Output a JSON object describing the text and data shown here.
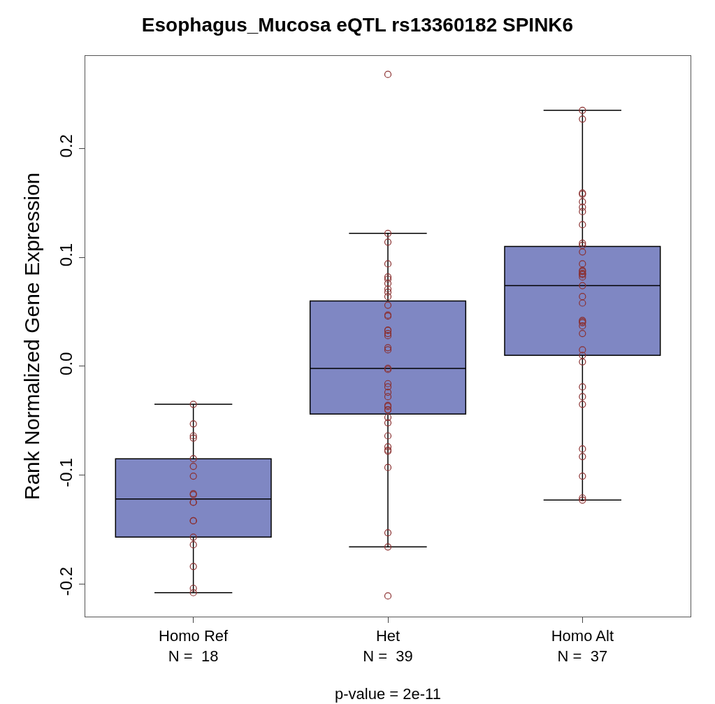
{
  "chart_data": {
    "type": "box",
    "title": "Esophagus_Mucosa eQTL rs13360182 SPINK6",
    "ylabel": "Rank Normalized Gene Expression",
    "categories": [
      "Homo Ref\nN =  18",
      "Het\nN =  39",
      "Homo Alt\nN =  37"
    ],
    "color": "#7f87c3",
    "boxes": [
      {
        "low": -0.208,
        "q1": -0.157,
        "median": -0.122,
        "q3": -0.085,
        "high": -0.035
      },
      {
        "low": -0.166,
        "q1": -0.044,
        "median": -0.002,
        "q3": 0.06,
        "high": 0.122
      },
      {
        "low": -0.123,
        "q1": 0.01,
        "median": 0.074,
        "q3": 0.11,
        "high": 0.235
      }
    ],
    "series": [
      {
        "type": "scatter",
        "color": "#8b2f2f",
        "x": [
          "Homo Ref\nN =  18",
          "Homo Ref\nN =  18",
          "Homo Ref\nN =  18",
          "Homo Ref\nN =  18",
          "Homo Ref\nN =  18",
          "Homo Ref\nN =  18",
          "Homo Ref\nN =  18",
          "Homo Ref\nN =  18",
          "Homo Ref\nN =  18",
          "Homo Ref\nN =  18",
          "Homo Ref\nN =  18",
          "Homo Ref\nN =  18",
          "Homo Ref\nN =  18",
          "Homo Ref\nN =  18",
          "Homo Ref\nN =  18",
          "Homo Ref\nN =  18",
          "Homo Ref\nN =  18",
          "Homo Ref\nN =  18"
        ],
        "values": [
          -0.035,
          -0.053,
          -0.064,
          -0.066,
          -0.085,
          -0.092,
          -0.101,
          -0.117,
          -0.118,
          -0.125,
          -0.125,
          -0.142,
          -0.142,
          -0.157,
          -0.164,
          -0.184,
          -0.204,
          -0.208
        ]
      },
      {
        "type": "scatter",
        "color": "#8b2f2f",
        "x": [
          "Het\nN =  39",
          "Het\nN =  39",
          "Het\nN =  39",
          "Het\nN =  39",
          "Het\nN =  39",
          "Het\nN =  39",
          "Het\nN =  39",
          "Het\nN =  39",
          "Het\nN =  39",
          "Het\nN =  39",
          "Het\nN =  39",
          "Het\nN =  39",
          "Het\nN =  39",
          "Het\nN =  39",
          "Het\nN =  39",
          "Het\nN =  39",
          "Het\nN =  39",
          "Het\nN =  39",
          "Het\nN =  39",
          "Het\nN =  39",
          "Het\nN =  39",
          "Het\nN =  39",
          "Het\nN =  39",
          "Het\nN =  39",
          "Het\nN =  39",
          "Het\nN =  39",
          "Het\nN =  39",
          "Het\nN =  39",
          "Het\nN =  39",
          "Het\nN =  39",
          "Het\nN =  39",
          "Het\nN =  39",
          "Het\nN =  39",
          "Het\nN =  39",
          "Het\nN =  39",
          "Het\nN =  39",
          "Het\nN =  39",
          "Het\nN =  39",
          "Het\nN =  39"
        ],
        "values": [
          0.268,
          0.122,
          0.114,
          0.094,
          0.082,
          0.08,
          0.076,
          0.071,
          0.068,
          0.064,
          0.056,
          0.047,
          0.046,
          0.033,
          0.033,
          0.03,
          0.028,
          0.017,
          0.015,
          -0.002,
          -0.003,
          -0.016,
          -0.019,
          -0.024,
          -0.028,
          -0.036,
          -0.037,
          -0.04,
          -0.04,
          -0.047,
          -0.052,
          -0.064,
          -0.074,
          -0.077,
          -0.078,
          -0.093,
          -0.153,
          -0.166,
          -0.211
        ]
      },
      {
        "type": "scatter",
        "color": "#8b2f2f",
        "x": [
          "Homo Alt\nN =  37",
          "Homo Alt\nN =  37",
          "Homo Alt\nN =  37",
          "Homo Alt\nN =  37",
          "Homo Alt\nN =  37",
          "Homo Alt\nN =  37",
          "Homo Alt\nN =  37",
          "Homo Alt\nN =  37",
          "Homo Alt\nN =  37",
          "Homo Alt\nN =  37",
          "Homo Alt\nN =  37",
          "Homo Alt\nN =  37",
          "Homo Alt\nN =  37",
          "Homo Alt\nN =  37",
          "Homo Alt\nN =  37",
          "Homo Alt\nN =  37",
          "Homo Alt\nN =  37",
          "Homo Alt\nN =  37",
          "Homo Alt\nN =  37",
          "Homo Alt\nN =  37",
          "Homo Alt\nN =  37",
          "Homo Alt\nN =  37",
          "Homo Alt\nN =  37",
          "Homo Alt\nN =  37",
          "Homo Alt\nN =  37",
          "Homo Alt\nN =  37",
          "Homo Alt\nN =  37",
          "Homo Alt\nN =  37",
          "Homo Alt\nN =  37",
          "Homo Alt\nN =  37",
          "Homo Alt\nN =  37",
          "Homo Alt\nN =  37",
          "Homo Alt\nN =  37",
          "Homo Alt\nN =  37",
          "Homo Alt\nN =  37",
          "Homo Alt\nN =  37",
          "Homo Alt\nN =  37"
        ],
        "values": [
          0.235,
          0.227,
          0.159,
          0.158,
          0.151,
          0.146,
          0.142,
          0.13,
          0.113,
          0.111,
          0.105,
          0.094,
          0.088,
          0.087,
          0.084,
          0.085,
          0.085,
          0.082,
          0.074,
          0.064,
          0.058,
          0.042,
          0.041,
          0.04,
          0.037,
          0.03,
          0.015,
          0.01,
          0.004,
          -0.019,
          -0.028,
          -0.035,
          -0.076,
          -0.083,
          -0.101,
          -0.121,
          -0.123
        ]
      }
    ],
    "marker": "circle",
    "ylim": [
      -0.23,
      0.285
    ],
    "yticks": [
      -0.2,
      -0.1,
      {
        "value": 0,
        "label": "0.0"
      },
      0.2,
      0.1
    ],
    "annotations": [
      "p-value = 2e-11"
    ]
  }
}
